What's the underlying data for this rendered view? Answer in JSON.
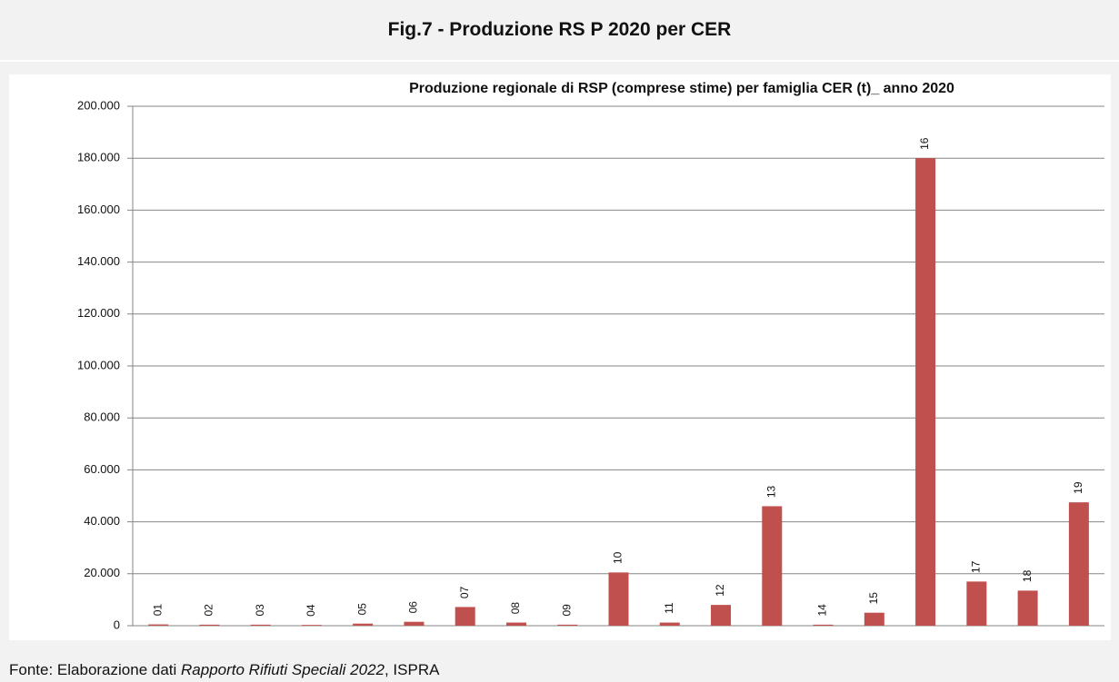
{
  "header": {
    "title": "Fig.7 - Produzione RS P 2020 per CER"
  },
  "chart_data": {
    "type": "bar",
    "title": "Produzione regionale di RSP (comprese stime) per famiglia CER (t)_ anno 2020",
    "categories": [
      "01",
      "02",
      "03",
      "04",
      "05",
      "06",
      "07",
      "08",
      "09",
      "10",
      "11",
      "12",
      "13",
      "14",
      "15",
      "16",
      "17",
      "18",
      "19"
    ],
    "values": [
      500,
      400,
      400,
      300,
      800,
      1500,
      7200,
      1200,
      400,
      20500,
      1200,
      8000,
      46000,
      400,
      5000,
      180000,
      17000,
      13500,
      47500
    ],
    "color": "#c0504d",
    "ylim": [
      0,
      200000
    ],
    "yticks": [
      0,
      {
        "value": 20000,
        "label": "20.000"
      },
      {
        "value": 40000,
        "label": "40.000"
      },
      {
        "value": 60000,
        "label": "60.000"
      },
      {
        "value": 80000,
        "label": "80.000"
      },
      {
        "value": 100000,
        "label": "100.000"
      },
      {
        "value": 120000,
        "label": "120.000"
      },
      {
        "value": 140000,
        "label": "140.000"
      },
      {
        "value": 160000,
        "label": "160.000"
      },
      {
        "value": 180000,
        "label": "180.000"
      },
      {
        "value": 200000,
        "label": "200.000"
      }
    ],
    "grid": true
  },
  "footer": {
    "parts": [
      "Fonte: Elaborazione dati ",
      "Rapporto Rifiuti Speciali 2022",
      ", ISPRA"
    ]
  }
}
